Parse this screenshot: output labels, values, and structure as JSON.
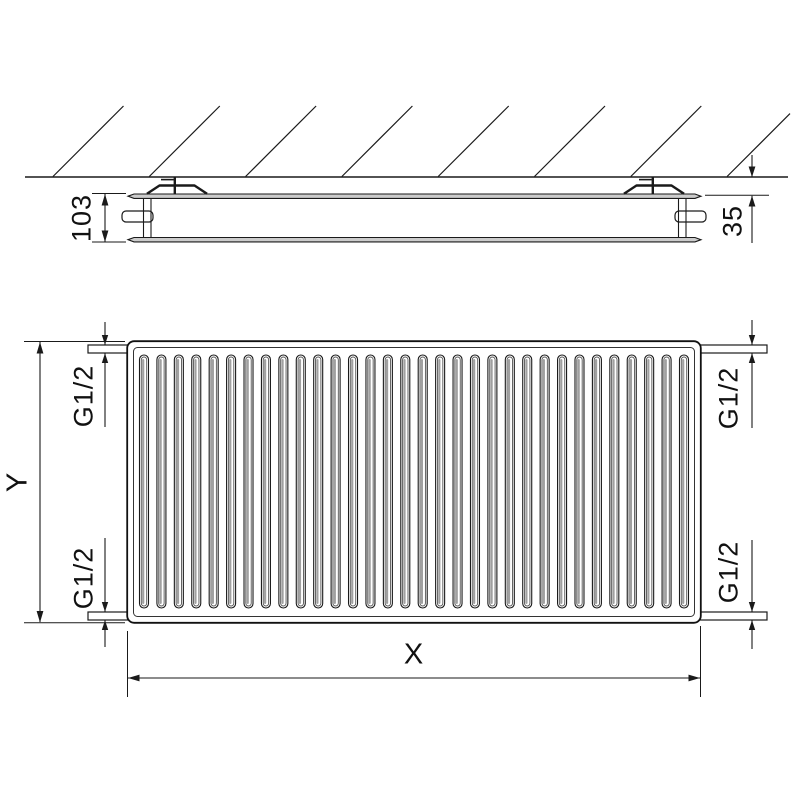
{
  "side_view": {
    "depth_label": "103",
    "gap_label": "35"
  },
  "front_view": {
    "height_label": "Y",
    "width_label": "X",
    "connections": {
      "top_left": {
        "label": "G1/2"
      },
      "top_right": {
        "label": "G1/2"
      },
      "bottom_left": {
        "label": "G1/2"
      },
      "bottom_right": {
        "label": "G1/2"
      }
    }
  },
  "drawing": {
    "fin_count": 32,
    "hatch_line_count": 8,
    "line_color": "#1a1a1a",
    "inner_line_color": "#555555",
    "shade_color": "#a0a0a0",
    "rail_fill": "#cccccc"
  }
}
